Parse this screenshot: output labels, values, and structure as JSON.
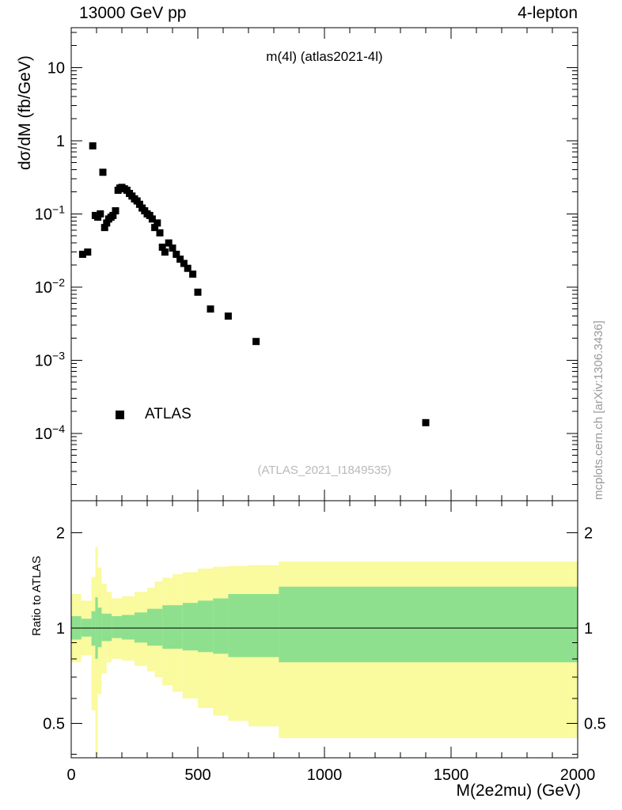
{
  "header": {
    "left": "13000 GeV pp",
    "right": "4-lepton"
  },
  "watermark_side": "mcplots.cern.ch [arXiv:1306.3436]",
  "colors": {
    "band_yellow": "#fafa9e",
    "band_green": "#8ee08e",
    "marker": "#000000",
    "watermark_gray": "#b9b9b9",
    "side_text_gray": "#999999"
  },
  "chart_data": {
    "type": "scatter",
    "title": "m(4l) (atlas2021-4l)",
    "annotation": "(ATLAS_2021_I1849535)",
    "xlabel": "M(2e2mu) (GeV)",
    "ylabel": "dσ/dM (fb/GeV)",
    "ratio_ylabel": "Ratio to ATLAS",
    "legend": [
      {
        "label": "ATLAS",
        "marker": "filled-square",
        "color": "#000000"
      }
    ],
    "xlim": [
      0,
      2000
    ],
    "ylog": true,
    "ylim": [
      1.2e-05,
      35
    ],
    "ratio_ylog": true,
    "ratio_ylim": [
      0.39,
      2.52
    ],
    "x_ticks": [
      0,
      500,
      1000,
      1500,
      2000
    ],
    "x_minor_step": 100,
    "y_ticks": [
      10,
      1,
      0.1,
      0.01,
      0.001,
      0.0001
    ],
    "ratio_ticks": [
      0.5,
      1,
      2
    ],
    "ratio_minor_ticks": [
      0.4,
      0.6,
      0.7,
      0.8,
      0.9
    ],
    "grid": false,
    "series": [
      {
        "name": "ATLAS",
        "points": [
          [
            45,
            0.028
          ],
          [
            65,
            0.03
          ],
          [
            85,
            0.85
          ],
          [
            95,
            0.095
          ],
          [
            105,
            0.09
          ],
          [
            115,
            0.1
          ],
          [
            125,
            0.37
          ],
          [
            132,
            0.065
          ],
          [
            140,
            0.075
          ],
          [
            148,
            0.085
          ],
          [
            157,
            0.09
          ],
          [
            165,
            0.095
          ],
          [
            175,
            0.11
          ],
          [
            185,
            0.21
          ],
          [
            192,
            0.225
          ],
          [
            200,
            0.23
          ],
          [
            210,
            0.22
          ],
          [
            220,
            0.21
          ],
          [
            230,
            0.19
          ],
          [
            240,
            0.175
          ],
          [
            250,
            0.16
          ],
          [
            260,
            0.15
          ],
          [
            270,
            0.135
          ],
          [
            280,
            0.12
          ],
          [
            290,
            0.11
          ],
          [
            300,
            0.1
          ],
          [
            310,
            0.095
          ],
          [
            320,
            0.085
          ],
          [
            330,
            0.065
          ],
          [
            340,
            0.075
          ],
          [
            350,
            0.055
          ],
          [
            360,
            0.035
          ],
          [
            370,
            0.03
          ],
          [
            385,
            0.04
          ],
          [
            400,
            0.034
          ],
          [
            415,
            0.028
          ],
          [
            430,
            0.024
          ],
          [
            445,
            0.021
          ],
          [
            460,
            0.018
          ],
          [
            480,
            0.015
          ],
          [
            500,
            0.0085
          ],
          [
            550,
            0.005
          ],
          [
            620,
            0.004
          ],
          [
            730,
            0.0018
          ],
          [
            1400,
            0.00014
          ]
        ]
      }
    ],
    "ratio_bands": {
      "unity": 1,
      "yellow": [
        [
          0,
          40,
          0.78,
          1.28
        ],
        [
          40,
          80,
          0.82,
          1.22
        ],
        [
          80,
          95,
          0.55,
          1.45
        ],
        [
          95,
          105,
          0.4,
          1.8
        ],
        [
          105,
          120,
          0.62,
          1.55
        ],
        [
          120,
          140,
          0.72,
          1.38
        ],
        [
          140,
          160,
          0.78,
          1.3
        ],
        [
          160,
          200,
          0.8,
          1.24
        ],
        [
          200,
          250,
          0.79,
          1.26
        ],
        [
          250,
          300,
          0.76,
          1.3
        ],
        [
          300,
          330,
          0.73,
          1.34
        ],
        [
          330,
          360,
          0.7,
          1.4
        ],
        [
          360,
          400,
          0.66,
          1.44
        ],
        [
          400,
          440,
          0.63,
          1.48
        ],
        [
          440,
          500,
          0.6,
          1.5
        ],
        [
          500,
          560,
          0.56,
          1.54
        ],
        [
          560,
          620,
          0.53,
          1.56
        ],
        [
          620,
          700,
          0.51,
          1.57
        ],
        [
          700,
          820,
          0.49,
          1.58
        ],
        [
          820,
          2000,
          0.45,
          1.62
        ]
      ],
      "green": [
        [
          0,
          40,
          0.92,
          1.09
        ],
        [
          40,
          80,
          0.94,
          1.07
        ],
        [
          80,
          95,
          0.88,
          1.13
        ],
        [
          95,
          105,
          0.8,
          1.25
        ],
        [
          105,
          120,
          0.87,
          1.16
        ],
        [
          120,
          160,
          0.91,
          1.11
        ],
        [
          160,
          200,
          0.93,
          1.09
        ],
        [
          200,
          250,
          0.92,
          1.1
        ],
        [
          250,
          300,
          0.9,
          1.12
        ],
        [
          300,
          360,
          0.88,
          1.15
        ],
        [
          360,
          440,
          0.86,
          1.18
        ],
        [
          440,
          500,
          0.85,
          1.2
        ],
        [
          500,
          560,
          0.84,
          1.22
        ],
        [
          560,
          620,
          0.83,
          1.24
        ],
        [
          620,
          820,
          0.81,
          1.28
        ],
        [
          820,
          2000,
          0.78,
          1.35
        ]
      ]
    }
  }
}
